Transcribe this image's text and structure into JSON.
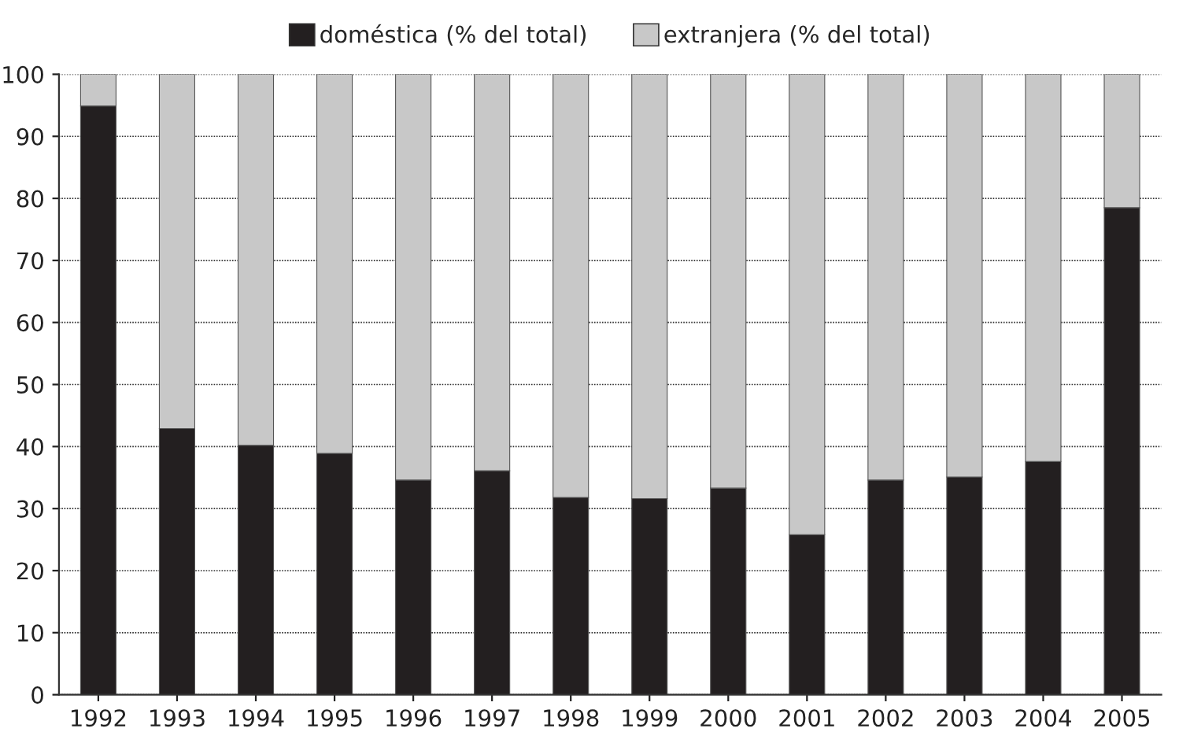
{
  "chart_data": {
    "type": "bar",
    "stacked": true,
    "categories": [
      "1992",
      "1993",
      "1994",
      "1995",
      "1996",
      "1997",
      "1998",
      "1999",
      "2000",
      "2001",
      "2002",
      "2003",
      "2004",
      "2005"
    ],
    "series": [
      {
        "name": "doméstica (% del total)",
        "color": "#231f20",
        "values": [
          94.9,
          42.9,
          40.2,
          38.9,
          34.6,
          36.1,
          31.8,
          31.6,
          33.3,
          25.8,
          34.6,
          35.1,
          37.6,
          78.5
        ]
      },
      {
        "name": "extranjera (% del total)",
        "color": "#c8c8c8",
        "values": [
          5.1,
          57.1,
          59.8,
          61.1,
          65.4,
          63.9,
          68.2,
          68.4,
          66.7,
          74.2,
          65.4,
          64.9,
          62.4,
          21.5
        ]
      }
    ],
    "ylim": [
      0,
      100
    ],
    "yticks": [
      0,
      10,
      20,
      30,
      40,
      50,
      60,
      70,
      80,
      90,
      100
    ],
    "grid": "y",
    "legend": "top"
  }
}
